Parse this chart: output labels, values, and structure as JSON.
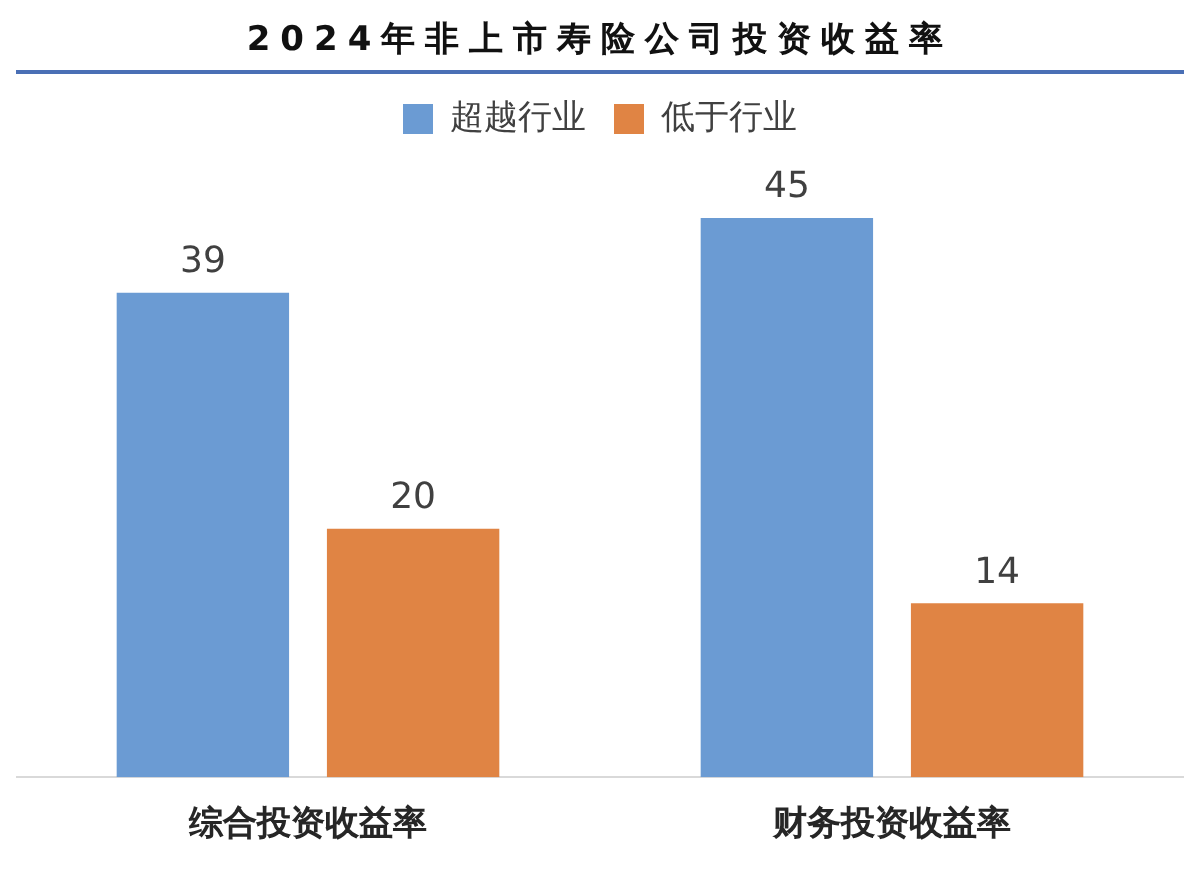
{
  "chart_data": {
    "type": "bar",
    "title": "2024年非上市寿险公司投资收益率",
    "categories": [
      "综合投资收益率",
      "财务投资收益率"
    ],
    "series": [
      {
        "name": "超越行业",
        "color": "#6b9bd3",
        "values": [
          39,
          45
        ]
      },
      {
        "name": "低于行业",
        "color": "#e08444",
        "values": [
          20,
          14
        ]
      }
    ],
    "data_labels": true,
    "legend": "top",
    "grid": false
  }
}
